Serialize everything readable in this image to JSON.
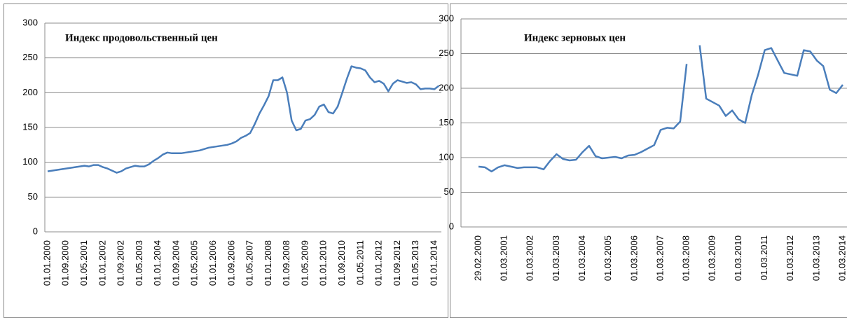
{
  "chart_data": [
    {
      "type": "line",
      "title": "Индекс продовольственный цен",
      "categories": [
        "01.01.2000",
        null,
        null,
        null,
        "01.09.2000",
        null,
        null,
        null,
        "01.05.2001",
        null,
        null,
        null,
        "01.01.2002",
        null,
        null,
        null,
        "01.09.2002",
        null,
        null,
        null,
        "01.05.2003",
        null,
        null,
        null,
        "01.01.2004",
        null,
        null,
        null,
        "01.09.2004",
        null,
        null,
        null,
        "01.05.2005",
        null,
        null,
        null,
        "01.01.2006",
        null,
        null,
        null,
        "01.09.2006",
        null,
        null,
        null,
        "01.05.2007",
        null,
        null,
        null,
        "01.01.2008",
        null,
        null,
        null,
        "01.09.2008",
        null,
        null,
        null,
        "01.05.2009",
        null,
        null,
        null,
        "01.01.2010",
        null,
        null,
        null,
        "01.09.2010",
        null,
        null,
        null,
        "01.05.2011",
        null,
        null,
        null,
        "01.01.2012",
        null,
        null,
        null,
        "01.09.2012",
        null,
        null,
        null,
        "01.05.2013",
        null,
        null,
        null,
        "01.01.2014",
        null
      ],
      "series": [
        {
          "color": "#4a7ebb",
          "values": [
            87,
            88,
            89,
            90,
            91,
            92,
            93,
            94,
            95,
            94,
            96,
            96,
            93,
            91,
            88,
            85,
            87,
            91,
            93,
            95,
            94,
            94,
            97,
            102,
            106,
            111,
            114,
            113,
            113,
            113,
            114,
            115,
            116,
            117,
            119,
            121,
            122,
            123,
            124,
            125,
            127,
            130,
            135,
            138,
            142,
            155,
            170,
            182,
            195,
            218,
            218,
            222,
            200,
            160,
            146,
            148,
            160,
            162,
            168,
            180,
            183,
            172,
            170,
            180,
            200,
            220,
            238,
            236,
            235,
            232,
            222,
            215,
            217,
            213,
            202,
            213,
            218,
            216,
            214,
            215,
            212,
            205,
            206,
            206,
            205,
            210
          ]
        }
      ],
      "ylim": [
        0,
        300
      ],
      "yticks": [
        0,
        50,
        100,
        150,
        200,
        250,
        300
      ],
      "grid": true
    },
    {
      "type": "line",
      "title": "Индекс зерновых цен",
      "categories": [
        "29.02.2000",
        null,
        null,
        null,
        "01.03.2001",
        null,
        null,
        null,
        "01.03.2002",
        null,
        null,
        null,
        "01.03.2003",
        null,
        null,
        null,
        "01.03.2004",
        null,
        null,
        null,
        "01.03.2005",
        null,
        null,
        null,
        "01.03.2006",
        null,
        null,
        null,
        "01.03.2007",
        null,
        null,
        null,
        "01.03.2008",
        null,
        null,
        null,
        "01.03.2009",
        null,
        null,
        null,
        "01.03.2010",
        null,
        null,
        null,
        "01.03.2011",
        null,
        null,
        null,
        "01.03.2012",
        null,
        null,
        null,
        "01.03.2013",
        null,
        null,
        null,
        "01.03.2014"
      ],
      "series": [
        {
          "color": "#4a7ebb",
          "values": [
            87,
            86,
            80,
            86,
            89,
            87,
            85,
            86,
            86,
            86,
            83,
            95,
            105,
            98,
            96,
            97,
            108,
            117,
            102,
            99,
            100,
            101,
            99,
            103,
            104,
            108,
            113,
            118,
            140,
            143,
            142,
            152,
            235,
            null,
            262,
            185,
            180,
            175,
            160,
            168,
            155,
            150,
            190,
            220,
            255,
            258,
            240,
            222,
            220,
            218,
            255,
            253,
            240,
            232,
            198,
            193,
            205
          ]
        }
      ],
      "ylim": [
        0,
        300
      ],
      "yticks": [
        0,
        50,
        100,
        150,
        200,
        250,
        300
      ],
      "grid": true
    }
  ]
}
